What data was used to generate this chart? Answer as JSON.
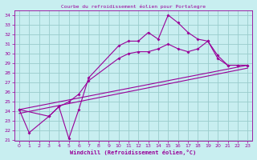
{
  "title": "Courbe du refroidissement éolien pour Portalegre",
  "xlabel": "Windchill (Refroidissement éolien,°C)",
  "bg_color": "#c8eef0",
  "grid_color": "#99cccc",
  "line_color": "#990099",
  "xlim": [
    -0.5,
    23.5
  ],
  "ylim": [
    21,
    34.5
  ],
  "xticks": [
    0,
    1,
    2,
    3,
    4,
    5,
    6,
    7,
    8,
    9,
    10,
    11,
    12,
    13,
    14,
    15,
    16,
    17,
    18,
    19,
    20,
    21,
    22,
    23
  ],
  "yticks": [
    21,
    22,
    23,
    24,
    25,
    26,
    27,
    28,
    29,
    30,
    31,
    32,
    33,
    34
  ],
  "line1_x": [
    0,
    1,
    3,
    4,
    5,
    6,
    7,
    10,
    11,
    12,
    13,
    14,
    15,
    16,
    17,
    18,
    19,
    20,
    21,
    22,
    23
  ],
  "line1_y": [
    24.2,
    21.8,
    23.5,
    24.5,
    21.2,
    24.2,
    27.5,
    30.8,
    31.3,
    31.3,
    32.2,
    31.5,
    34.0,
    33.2,
    32.2,
    31.5,
    31.3,
    29.5,
    28.8,
    28.8,
    28.8
  ],
  "line2_x": [
    0,
    3,
    4,
    5,
    6,
    7,
    10,
    11,
    12,
    13,
    14,
    15,
    16,
    17,
    18,
    19,
    20,
    21,
    22,
    23
  ],
  "line2_y": [
    24.2,
    23.5,
    24.5,
    25.0,
    25.8,
    27.2,
    29.5,
    30.0,
    30.2,
    30.2,
    30.5,
    31.0,
    30.5,
    30.2,
    30.5,
    31.3,
    29.8,
    28.8,
    28.8,
    28.8
  ],
  "line3_x": [
    0,
    23
  ],
  "line3_y": [
    24.2,
    28.8
  ],
  "line4_x": [
    0,
    23
  ],
  "line4_y": [
    23.8,
    28.5
  ]
}
